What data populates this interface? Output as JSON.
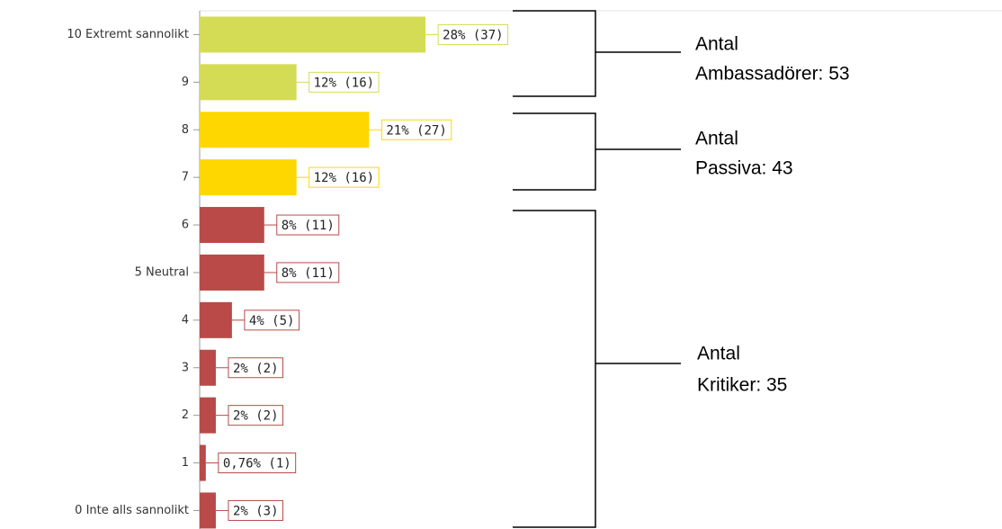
{
  "chart_data": {
    "type": "bar",
    "orientation": "horizontal",
    "categories": [
      "10 Extremt sannolikt",
      "9",
      "8",
      "7",
      "6",
      "5 Neutral",
      "4",
      "3",
      "2",
      "1",
      "0 Inte alls sannolikt"
    ],
    "values": [
      28,
      12,
      21,
      12,
      8,
      8,
      4,
      2,
      2,
      0.76,
      2
    ],
    "value_labels": [
      "28% (37)",
      "12% (16)",
      "21% (27)",
      "12% (16)",
      "8% (11)",
      "8% (11)",
      "4% (5)",
      "2% (2)",
      "2% (2)",
      "0,76% (1)",
      "2% (3)"
    ],
    "colors": [
      "#d4dc56",
      "#d4dc56",
      "#ffd700",
      "#ffd700",
      "#b94a48",
      "#b94a48",
      "#b94a48",
      "#b94a48",
      "#b94a48",
      "#b94a48",
      "#b94a48"
    ],
    "annotations": [
      {
        "lines": [
          "Antal",
          "Ambassadörer: 53"
        ]
      },
      {
        "lines": [
          "Antal",
          "Passiva: 43"
        ]
      },
      {
        "lines": [
          "Antal",
          "Kritiker: 35"
        ]
      }
    ]
  }
}
